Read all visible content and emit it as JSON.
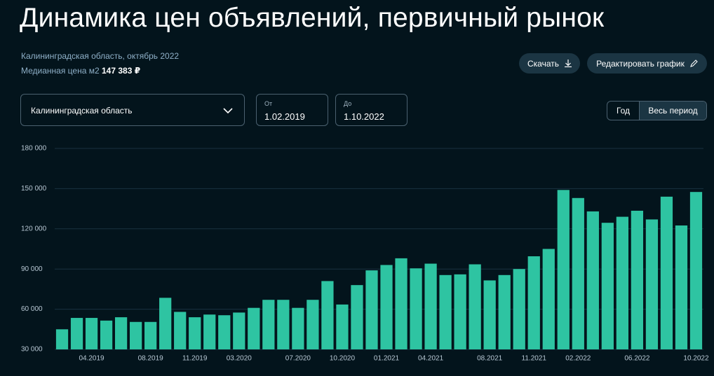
{
  "header": {
    "title": "Динамика цен объявлений, первичный рынок",
    "subtitle": "Калининградская область, октябрь 2022",
    "median_label": "Медианная цена м2",
    "median_value": "147 383 ₽"
  },
  "actions": {
    "download": "Скачать",
    "edit": "Редактировать график"
  },
  "controls": {
    "region": "Калининградская область",
    "from_label": "От",
    "from_value": "1.02.2019",
    "to_label": "До",
    "to_value": "1.10.2022",
    "period_year": "Год",
    "period_all": "Весь период"
  },
  "chart_data": {
    "type": "bar",
    "color": "#2ec4a2",
    "grid": true,
    "categories": [
      null,
      null,
      "04.2019",
      null,
      null,
      null,
      "08.2019",
      null,
      null,
      "11.2019",
      null,
      null,
      "03.2020",
      null,
      null,
      null,
      "07.2020",
      null,
      null,
      "10.2020",
      null,
      null,
      "01.2021",
      null,
      null,
      "04.2021",
      null,
      null,
      null,
      "08.2021",
      null,
      null,
      "11.2021",
      null,
      null,
      "02.2022",
      null,
      null,
      null,
      "06.2022",
      null,
      null,
      null,
      "10.2022"
    ],
    "values": [
      45000,
      53500,
      53500,
      51500,
      54000,
      50500,
      50500,
      68500,
      58000,
      54000,
      56000,
      55500,
      57500,
      61000,
      67000,
      67000,
      61000,
      67000,
      81000,
      63500,
      78000,
      89000,
      93000,
      98000,
      90500,
      94000,
      85500,
      86000,
      93500,
      81500,
      85500,
      90000,
      99500,
      105000,
      149000,
      143000,
      133000,
      124500,
      129000,
      133500,
      127000,
      144000,
      122500,
      147500
    ],
    "ylim": [
      30000,
      180000
    ],
    "yticks": [
      {
        "value": 30000,
        "label": "30 000"
      },
      {
        "value": 60000,
        "label": "60 000"
      },
      {
        "value": 90000,
        "label": "90 000"
      },
      {
        "value": 120000,
        "label": "120 000"
      },
      {
        "value": 150000,
        "label": "150 000"
      },
      {
        "value": 180000,
        "label": "180 000"
      }
    ]
  }
}
